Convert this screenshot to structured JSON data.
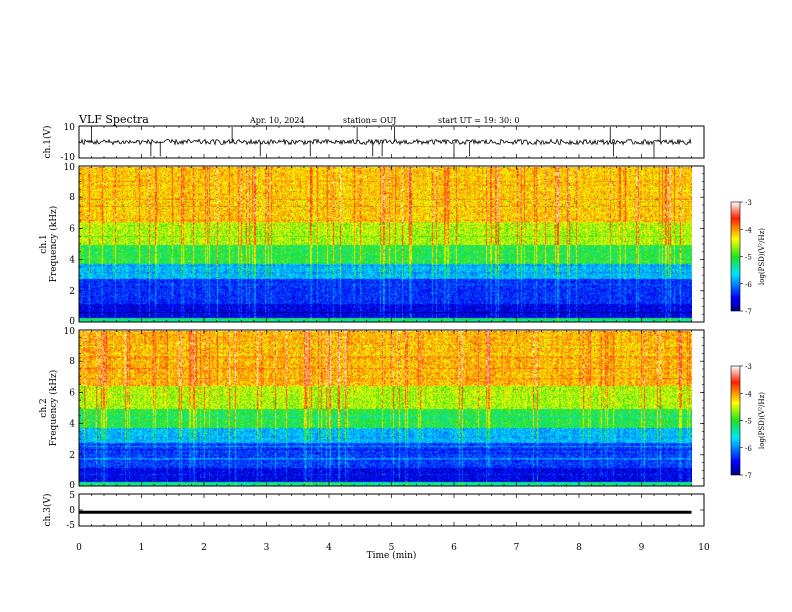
{
  "header": {
    "title": "VLF Spectra",
    "date": "Apr. 10, 2024",
    "station": "station= OUJ",
    "start": "start  UT =   19: 30: 0"
  },
  "chart_data": [
    {
      "type": "line",
      "name": "ch1-waveform",
      "ylabel": "ch.1(V)",
      "ylim": [
        -10,
        10
      ],
      "yticks": [
        "10",
        "-10"
      ],
      "xlim": [
        0,
        10
      ],
      "trace_level": 0,
      "trace_noise": 0.8,
      "spike_times": [
        0.2,
        1.15,
        1.3,
        2.45,
        2.9,
        3.7,
        4.45,
        4.7,
        4.85,
        5.05,
        6.0,
        6.25,
        8.5,
        8.55,
        9.2,
        9.3
      ]
    },
    {
      "type": "heatmap",
      "name": "ch1-spectrogram",
      "ylabel": "ch.1",
      "ylabel2": "Frequency (kHz)",
      "ylim": [
        0,
        10
      ],
      "yticks": [
        "0",
        "2",
        "4",
        "6",
        "8",
        "10"
      ],
      "xlim": [
        0,
        9.8
      ],
      "colorbar": {
        "label": "log(PSD)(V²/Hz)",
        "range": [
          -7,
          -3
        ],
        "ticks": [
          "-3",
          "-4",
          "-5",
          "-6",
          "-7"
        ]
      }
    },
    {
      "type": "heatmap",
      "name": "ch2-spectrogram",
      "ylabel": "ch.2",
      "ylabel2": "Frequency (kHz)",
      "ylim": [
        0,
        10
      ],
      "yticks": [
        "0",
        "2",
        "4",
        "6",
        "8",
        "10"
      ],
      "xlim": [
        0,
        9.8
      ],
      "colorbar": {
        "label": "log(PSD)(V²/Hz)",
        "range": [
          -7,
          -3
        ],
        "ticks": [
          "-3",
          "-4",
          "-5",
          "-6",
          "-7"
        ]
      }
    },
    {
      "type": "line",
      "name": "ch3-waveform",
      "ylabel": "ch.3(V)",
      "ylim": [
        -5,
        5
      ],
      "yticks": [
        "5",
        "0",
        "-5"
      ],
      "xlim": [
        0,
        10
      ],
      "trace_level": -0.7,
      "xlabel": "Time (min)",
      "xticks": [
        "0",
        "1",
        "2",
        "3",
        "4",
        "5",
        "6",
        "7",
        "8",
        "9",
        "10"
      ]
    }
  ]
}
